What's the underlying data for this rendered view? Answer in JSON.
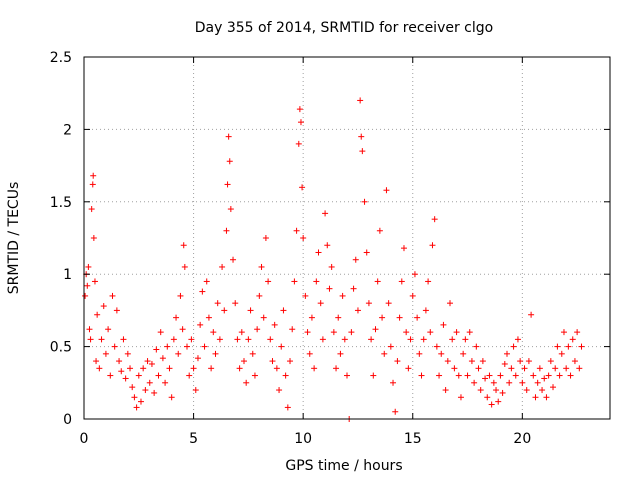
{
  "chart_data": {
    "type": "scatter",
    "title": "Day 355 of 2014, SRMTID for receiver clgo",
    "xlabel": "GPS time / hours",
    "ylabel": "SRMTID / TECUs",
    "xlim": [
      0,
      24
    ],
    "ylim": [
      0,
      2.5
    ],
    "xticks": [
      0,
      5,
      10,
      15,
      20
    ],
    "yticks": [
      0,
      0.5,
      1,
      1.5,
      2,
      2.5
    ],
    "xtick_labels": [
      "0",
      "5",
      "10",
      "15",
      "20"
    ],
    "ytick_labels": [
      "0",
      "0.5",
      "1",
      "1.5",
      "2",
      "2.5"
    ],
    "grid": true,
    "marker": "+",
    "color": "#ff0000",
    "series": [
      {
        "name": "SRMTID",
        "points": [
          [
            0.05,
            0.85
          ],
          [
            0.1,
            1.0
          ],
          [
            0.15,
            0.92
          ],
          [
            0.2,
            1.05
          ],
          [
            0.25,
            0.62
          ],
          [
            0.3,
            0.55
          ],
          [
            0.35,
            1.45
          ],
          [
            0.4,
            1.62
          ],
          [
            0.42,
            1.68
          ],
          [
            0.45,
            1.25
          ],
          [
            0.5,
            0.95
          ],
          [
            0.55,
            0.4
          ],
          [
            0.6,
            0.72
          ],
          [
            0.7,
            0.35
          ],
          [
            0.8,
            0.55
          ],
          [
            0.9,
            0.78
          ],
          [
            1.0,
            0.45
          ],
          [
            1.1,
            0.62
          ],
          [
            1.2,
            0.3
          ],
          [
            1.3,
            0.85
          ],
          [
            1.4,
            0.5
          ],
          [
            1.5,
            0.75
          ],
          [
            1.6,
            0.4
          ],
          [
            1.7,
            0.33
          ],
          [
            1.8,
            0.55
          ],
          [
            1.9,
            0.28
          ],
          [
            2.0,
            0.45
          ],
          [
            2.1,
            0.35
          ],
          [
            2.2,
            0.22
          ],
          [
            2.3,
            0.15
          ],
          [
            2.4,
            0.08
          ],
          [
            2.5,
            0.3
          ],
          [
            2.6,
            0.12
          ],
          [
            2.7,
            0.35
          ],
          [
            2.8,
            0.2
          ],
          [
            2.9,
            0.4
          ],
          [
            3.0,
            0.25
          ],
          [
            3.1,
            0.38
          ],
          [
            3.2,
            0.18
          ],
          [
            3.3,
            0.48
          ],
          [
            3.4,
            0.3
          ],
          [
            3.5,
            0.6
          ],
          [
            3.6,
            0.42
          ],
          [
            3.7,
            0.25
          ],
          [
            3.8,
            0.5
          ],
          [
            3.9,
            0.35
          ],
          [
            4.0,
            0.15
          ],
          [
            4.1,
            0.55
          ],
          [
            4.2,
            0.7
          ],
          [
            4.3,
            0.45
          ],
          [
            4.4,
            0.85
          ],
          [
            4.5,
            0.62
          ],
          [
            4.55,
            1.2
          ],
          [
            4.6,
            1.05
          ],
          [
            4.7,
            0.5
          ],
          [
            4.8,
            0.3
          ],
          [
            4.9,
            0.55
          ],
          [
            5.0,
            0.35
          ],
          [
            5.1,
            0.2
          ],
          [
            5.2,
            0.42
          ],
          [
            5.3,
            0.65
          ],
          [
            5.4,
            0.88
          ],
          [
            5.5,
            0.5
          ],
          [
            5.6,
            0.95
          ],
          [
            5.7,
            0.7
          ],
          [
            5.8,
            0.35
          ],
          [
            5.9,
            0.6
          ],
          [
            6.0,
            0.45
          ],
          [
            6.1,
            0.8
          ],
          [
            6.2,
            0.55
          ],
          [
            6.3,
            1.05
          ],
          [
            6.4,
            0.75
          ],
          [
            6.5,
            1.3
          ],
          [
            6.55,
            1.62
          ],
          [
            6.6,
            1.95
          ],
          [
            6.65,
            1.78
          ],
          [
            6.7,
            1.45
          ],
          [
            6.8,
            1.1
          ],
          [
            6.9,
            0.8
          ],
          [
            7.0,
            0.55
          ],
          [
            7.1,
            0.35
          ],
          [
            7.2,
            0.6
          ],
          [
            7.3,
            0.4
          ],
          [
            7.4,
            0.25
          ],
          [
            7.5,
            0.55
          ],
          [
            7.6,
            0.75
          ],
          [
            7.7,
            0.45
          ],
          [
            7.8,
            0.3
          ],
          [
            7.9,
            0.62
          ],
          [
            8.0,
            0.85
          ],
          [
            8.1,
            1.05
          ],
          [
            8.2,
            0.7
          ],
          [
            8.3,
            1.25
          ],
          [
            8.4,
            0.95
          ],
          [
            8.5,
            0.55
          ],
          [
            8.6,
            0.4
          ],
          [
            8.7,
            0.65
          ],
          [
            8.8,
            0.35
          ],
          [
            8.9,
            0.2
          ],
          [
            9.0,
            0.5
          ],
          [
            9.1,
            0.75
          ],
          [
            9.2,
            0.3
          ],
          [
            9.3,
            0.08
          ],
          [
            9.4,
            0.4
          ],
          [
            9.5,
            0.62
          ],
          [
            9.6,
            0.95
          ],
          [
            9.7,
            1.3
          ],
          [
            9.8,
            1.9
          ],
          [
            9.85,
            2.14
          ],
          [
            9.9,
            2.05
          ],
          [
            9.95,
            1.6
          ],
          [
            10.0,
            1.25
          ],
          [
            10.1,
            0.85
          ],
          [
            10.2,
            0.6
          ],
          [
            10.3,
            0.45
          ],
          [
            10.4,
            0.7
          ],
          [
            10.5,
            0.35
          ],
          [
            10.6,
            0.95
          ],
          [
            10.7,
            1.15
          ],
          [
            10.8,
            0.8
          ],
          [
            10.9,
            0.55
          ],
          [
            11.0,
            1.42
          ],
          [
            11.1,
            1.2
          ],
          [
            11.2,
            0.9
          ],
          [
            11.3,
            1.05
          ],
          [
            11.4,
            0.6
          ],
          [
            11.5,
            0.35
          ],
          [
            11.6,
            0.7
          ],
          [
            11.7,
            0.45
          ],
          [
            11.8,
            0.85
          ],
          [
            11.9,
            0.55
          ],
          [
            12.0,
            0.3
          ],
          [
            12.1,
            0.0
          ],
          [
            12.2,
            0.6
          ],
          [
            12.3,
            0.9
          ],
          [
            12.4,
            1.1
          ],
          [
            12.5,
            0.75
          ],
          [
            12.6,
            2.2
          ],
          [
            12.65,
            1.95
          ],
          [
            12.7,
            1.85
          ],
          [
            12.8,
            1.5
          ],
          [
            12.9,
            1.15
          ],
          [
            13.0,
            0.8
          ],
          [
            13.1,
            0.55
          ],
          [
            13.2,
            0.3
          ],
          [
            13.3,
            0.62
          ],
          [
            13.4,
            0.95
          ],
          [
            13.5,
            1.3
          ],
          [
            13.6,
            0.7
          ],
          [
            13.7,
            0.45
          ],
          [
            13.8,
            1.58
          ],
          [
            13.9,
            0.8
          ],
          [
            14.0,
            0.5
          ],
          [
            14.1,
            0.25
          ],
          [
            14.2,
            0.05
          ],
          [
            14.3,
            0.4
          ],
          [
            14.4,
            0.7
          ],
          [
            14.5,
            0.95
          ],
          [
            14.6,
            1.18
          ],
          [
            14.7,
            0.6
          ],
          [
            14.8,
            0.35
          ],
          [
            14.9,
            0.55
          ],
          [
            15.0,
            0.85
          ],
          [
            15.1,
            1.0
          ],
          [
            15.2,
            0.7
          ],
          [
            15.3,
            0.45
          ],
          [
            15.4,
            0.3
          ],
          [
            15.5,
            0.55
          ],
          [
            15.6,
            0.75
          ],
          [
            15.7,
            0.95
          ],
          [
            15.8,
            0.6
          ],
          [
            15.9,
            1.2
          ],
          [
            16.0,
            1.38
          ],
          [
            16.1,
            0.5
          ],
          [
            16.2,
            0.3
          ],
          [
            16.3,
            0.45
          ],
          [
            16.4,
            0.65
          ],
          [
            16.5,
            0.2
          ],
          [
            16.6,
            0.4
          ],
          [
            16.7,
            0.8
          ],
          [
            16.8,
            0.55
          ],
          [
            16.9,
            0.35
          ],
          [
            17.0,
            0.6
          ],
          [
            17.1,
            0.3
          ],
          [
            17.2,
            0.15
          ],
          [
            17.3,
            0.45
          ],
          [
            17.4,
            0.55
          ],
          [
            17.5,
            0.3
          ],
          [
            17.6,
            0.6
          ],
          [
            17.7,
            0.4
          ],
          [
            17.8,
            0.25
          ],
          [
            17.9,
            0.5
          ],
          [
            18.0,
            0.35
          ],
          [
            18.1,
            0.2
          ],
          [
            18.2,
            0.4
          ],
          [
            18.3,
            0.28
          ],
          [
            18.4,
            0.15
          ],
          [
            18.5,
            0.3
          ],
          [
            18.6,
            0.1
          ],
          [
            18.7,
            0.25
          ],
          [
            18.8,
            0.2
          ],
          [
            18.9,
            0.12
          ],
          [
            19.0,
            0.3
          ],
          [
            19.1,
            0.18
          ],
          [
            19.2,
            0.38
          ],
          [
            19.3,
            0.45
          ],
          [
            19.4,
            0.25
          ],
          [
            19.5,
            0.35
          ],
          [
            19.6,
            0.5
          ],
          [
            19.7,
            0.3
          ],
          [
            19.8,
            0.55
          ],
          [
            19.9,
            0.4
          ],
          [
            20.0,
            0.25
          ],
          [
            20.1,
            0.35
          ],
          [
            20.2,
            0.2
          ],
          [
            20.3,
            0.4
          ],
          [
            20.4,
            0.72
          ],
          [
            20.5,
            0.3
          ],
          [
            20.6,
            0.15
          ],
          [
            20.7,
            0.25
          ],
          [
            20.8,
            0.35
          ],
          [
            20.9,
            0.2
          ],
          [
            21.0,
            0.28
          ],
          [
            21.1,
            0.15
          ],
          [
            21.2,
            0.3
          ],
          [
            21.3,
            0.4
          ],
          [
            21.4,
            0.22
          ],
          [
            21.5,
            0.35
          ],
          [
            21.6,
            0.5
          ],
          [
            21.7,
            0.3
          ],
          [
            21.8,
            0.45
          ],
          [
            21.9,
            0.6
          ],
          [
            22.0,
            0.35
          ],
          [
            22.1,
            0.5
          ],
          [
            22.2,
            0.3
          ],
          [
            22.3,
            0.55
          ],
          [
            22.4,
            0.4
          ],
          [
            22.5,
            0.6
          ],
          [
            22.6,
            0.35
          ],
          [
            22.7,
            0.5
          ]
        ]
      }
    ]
  }
}
